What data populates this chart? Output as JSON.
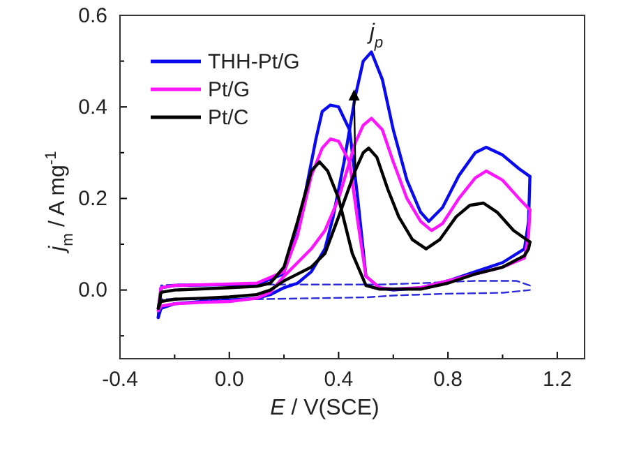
{
  "chart_data": {
    "type": "line",
    "xlabel": "E / V(SCE)",
    "ylabel": "j$_{m}$ / A mg$^{-1}$",
    "xlim": [
      -0.4,
      1.3
    ],
    "ylim": [
      -0.15,
      0.6
    ],
    "xticks": [
      {
        "value": -0.4,
        "label": "-0.4"
      },
      {
        "value": -0.2,
        "label": null
      },
      {
        "value": 0,
        "label": "0.0"
      },
      {
        "value": 0.2,
        "label": null
      },
      {
        "value": 0.4,
        "label": "0.4"
      },
      {
        "value": 0.6,
        "label": null
      },
      {
        "value": 0.8,
        "label": "0.8"
      },
      {
        "value": 1.0,
        "label": null
      },
      {
        "value": 1.2,
        "label": "1.2"
      }
    ],
    "yticks": [
      {
        "value": -0.1,
        "label": null
      },
      {
        "value": 0,
        "label": "0.0"
      },
      {
        "value": 0.1,
        "label": null
      },
      {
        "value": 0.2,
        "label": "0.2"
      },
      {
        "value": 0.3,
        "label": null
      },
      {
        "value": 0.4,
        "label": "0.4"
      },
      {
        "value": 0.5,
        "label": null
      },
      {
        "value": 0.6,
        "label": "0.6"
      }
    ],
    "grid": false,
    "legend": "top left",
    "marker": "none",
    "annotations": [
      "j$_{p}$"
    ],
    "series": [
      {
        "color": "#2b2bd8",
        "line_style": "dashed",
        "x": [
          -0.26,
          -0.25,
          -0.1,
          0.1,
          0.3,
          0.5,
          0.6,
          0.8,
          1.0,
          1.1
        ],
        "values": [
          -0.03,
          -0.02,
          -0.02,
          -0.02,
          -0.018,
          -0.016,
          -0.012,
          -0.008,
          -0.006,
          0.0
        ]
      },
      {
        "color": "#2b2bd8",
        "line_style": "dashed",
        "x": [
          1.1,
          1.05,
          0.9,
          0.7,
          0.55,
          0.4,
          0.2,
          0.0,
          -0.2,
          -0.25
        ],
        "values": [
          0.01,
          0.02,
          0.02,
          0.015,
          0.012,
          0.012,
          0.012,
          0.012,
          0.012,
          0.01
        ]
      },
      {
        "name": "THH-Pt/G",
        "color": "#0a0aee",
        "x": [
          -0.26,
          -0.25,
          -0.2,
          -0.1,
          0.0,
          0.1,
          0.15,
          0.2,
          0.25,
          0.3,
          0.35,
          0.38,
          0.42,
          0.46,
          0.49,
          0.52,
          0.56,
          0.6,
          0.65,
          0.7,
          0.73,
          0.78,
          0.84,
          0.9,
          0.94,
          1.0,
          1.06,
          1.1
        ],
        "values": [
          -0.06,
          -0.04,
          -0.03,
          -0.025,
          -0.022,
          -0.018,
          -0.01,
          0.005,
          0.015,
          0.04,
          0.09,
          0.16,
          0.28,
          0.42,
          0.5,
          0.52,
          0.46,
          0.35,
          0.24,
          0.17,
          0.15,
          0.18,
          0.25,
          0.3,
          0.312,
          0.295,
          0.265,
          0.248
        ]
      },
      {
        "color": "#0a0aee",
        "x": [
          1.1,
          1.095,
          1.08,
          1.0,
          0.9,
          0.8,
          0.7,
          0.6,
          0.55,
          0.5,
          0.47,
          0.44,
          0.4,
          0.37,
          0.34,
          0.317,
          0.25,
          0.198,
          0.1,
          0.0,
          -0.2,
          -0.25,
          -0.26
        ],
        "values": [
          0.248,
          0.15,
          0.09,
          0.06,
          0.04,
          0.02,
          0.005,
          0.0,
          0.005,
          0.03,
          0.2,
          0.35,
          0.4,
          0.404,
          0.39,
          0.33,
          0.126,
          0.035,
          0.012,
          0.012,
          0.01,
          0.005,
          -0.06
        ]
      },
      {
        "name": "Pt/G",
        "color": "#ff14ff",
        "x": [
          -0.26,
          -0.25,
          -0.2,
          -0.1,
          0.0,
          0.1,
          0.15,
          0.2,
          0.25,
          0.3,
          0.35,
          0.4,
          0.46,
          0.49,
          0.52,
          0.56,
          0.6,
          0.65,
          0.7,
          0.74,
          0.78,
          0.84,
          0.9,
          0.94,
          1.0,
          1.06,
          1.1
        ],
        "values": [
          -0.045,
          -0.035,
          -0.03,
          -0.027,
          -0.025,
          -0.018,
          -0.005,
          0.03,
          0.06,
          0.09,
          0.13,
          0.2,
          0.32,
          0.36,
          0.375,
          0.35,
          0.28,
          0.2,
          0.15,
          0.13,
          0.145,
          0.2,
          0.245,
          0.26,
          0.24,
          0.2,
          0.175
        ]
      },
      {
        "color": "#ff14ff",
        "x": [
          1.1,
          1.095,
          1.08,
          1.0,
          0.9,
          0.8,
          0.7,
          0.6,
          0.55,
          0.5,
          0.47,
          0.44,
          0.4,
          0.37,
          0.34,
          0.3,
          0.25,
          0.2,
          0.1,
          0.0,
          -0.2,
          -0.25,
          -0.26
        ],
        "values": [
          0.175,
          0.12,
          0.07,
          0.05,
          0.035,
          0.02,
          0.005,
          0.002,
          0.005,
          0.03,
          0.15,
          0.28,
          0.325,
          0.33,
          0.31,
          0.25,
          0.12,
          0.04,
          0.015,
          0.013,
          0.01,
          0.005,
          -0.045
        ]
      },
      {
        "name": "Pt/C",
        "color": "#000000",
        "x": [
          -0.26,
          -0.25,
          -0.2,
          -0.1,
          0.0,
          0.1,
          0.15,
          0.2,
          0.25,
          0.3,
          0.35,
          0.4,
          0.46,
          0.49,
          0.51,
          0.54,
          0.58,
          0.62,
          0.67,
          0.72,
          0.77,
          0.83,
          0.88,
          0.93,
          0.98,
          1.04,
          1.1
        ],
        "values": [
          -0.04,
          -0.025,
          -0.02,
          -0.018,
          -0.015,
          -0.01,
          0.0,
          0.02,
          0.035,
          0.05,
          0.08,
          0.16,
          0.26,
          0.3,
          0.31,
          0.29,
          0.22,
          0.16,
          0.11,
          0.09,
          0.11,
          0.16,
          0.185,
          0.19,
          0.17,
          0.13,
          0.105
        ]
      },
      {
        "color": "#000000",
        "x": [
          1.1,
          1.095,
          1.08,
          1.0,
          0.9,
          0.8,
          0.7,
          0.6,
          0.55,
          0.5,
          0.45,
          0.4,
          0.36,
          0.33,
          0.3,
          0.25,
          0.2,
          0.15,
          0.1,
          0.0,
          -0.2,
          -0.25,
          -0.26
        ],
        "values": [
          0.105,
          0.09,
          0.075,
          0.05,
          0.035,
          0.015,
          0.002,
          0.002,
          0.002,
          0.01,
          0.08,
          0.2,
          0.26,
          0.28,
          0.26,
          0.15,
          0.05,
          0.015,
          0.008,
          0.005,
          0.0,
          -0.005,
          -0.04
        ]
      }
    ]
  }
}
